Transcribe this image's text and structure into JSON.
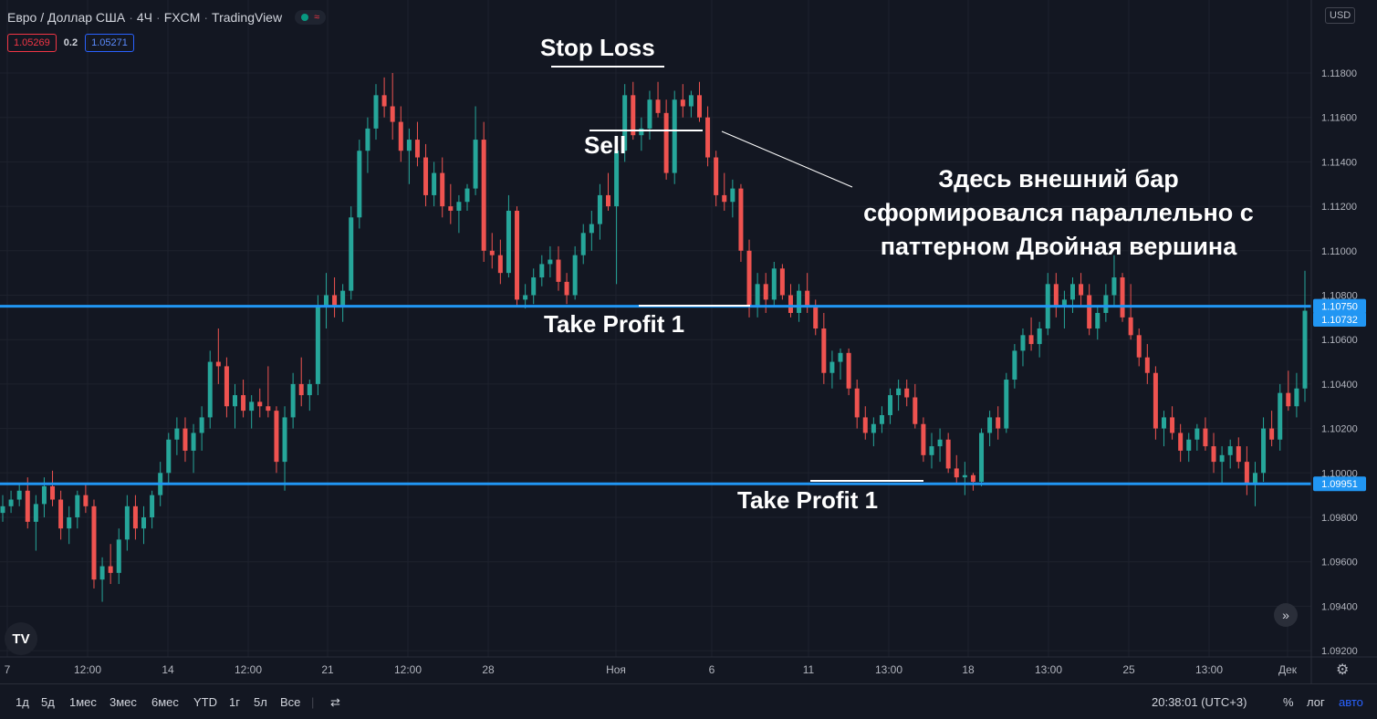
{
  "header": {
    "symbol": "Евро / Доллар США",
    "interval": "4Ч",
    "broker": "FXCM",
    "platform": "TradingView"
  },
  "quotes": {
    "sell": "1.05269",
    "spread": "0.2",
    "buy": "1.05271"
  },
  "currency_button": "USD",
  "colors": {
    "up": "#26a69a",
    "down": "#ef5350",
    "level": "#2196f3",
    "background": "#131722"
  },
  "chart_data": {
    "type": "candlestick",
    "y_ticks": [
      "1.11800",
      "1.11600",
      "1.11400",
      "1.11200",
      "1.11000",
      "1.10800",
      "1.10600",
      "1.10400",
      "1.10200",
      "1.10000",
      "1.09800",
      "1.09600",
      "1.09400",
      "1.09200"
    ],
    "ylim": [
      1.0917,
      1.1209
    ],
    "x_ticks": [
      "7",
      "12:00",
      "14",
      "12:00",
      "21",
      "12:00",
      "28",
      "Ноя",
      "6",
      "11",
      "13:00",
      "18",
      "13:00",
      "25",
      "13:00",
      "Дек"
    ],
    "horizontal_levels": [
      1.1075,
      1.09951
    ],
    "level_labels": [
      "1.10750",
      "1.09951"
    ],
    "last_price_label": "1.10732",
    "candles": [
      [
        1.0982,
        1.099,
        1.0978,
        1.0985
      ],
      [
        1.0985,
        1.0992,
        1.0982,
        1.0988
      ],
      [
        1.0988,
        1.0995,
        1.0985,
        1.0992
      ],
      [
        1.0992,
        1.0998,
        1.0975,
        1.0978
      ],
      [
        1.0978,
        1.099,
        1.0965,
        1.0986
      ],
      [
        1.0986,
        1.0998,
        1.098,
        1.0994
      ],
      [
        1.0994,
        1.1001,
        1.0985,
        1.0988
      ],
      [
        1.0988,
        1.0992,
        1.097,
        1.0975
      ],
      [
        1.0975,
        1.0985,
        1.0968,
        1.098
      ],
      [
        1.098,
        1.0992,
        1.0975,
        1.099
      ],
      [
        1.099,
        1.0995,
        1.0982,
        1.0985
      ],
      [
        1.0985,
        1.0988,
        1.0948,
        1.0952
      ],
      [
        1.0952,
        1.0962,
        1.0942,
        1.0958
      ],
      [
        1.0958,
        1.0968,
        1.095,
        1.0955
      ],
      [
        1.0955,
        1.0975,
        1.095,
        1.097
      ],
      [
        1.097,
        1.099,
        1.0965,
        1.0985
      ],
      [
        1.0985,
        1.099,
        1.097,
        1.0975
      ],
      [
        1.0975,
        1.0985,
        1.0968,
        1.098
      ],
      [
        1.098,
        1.0992,
        1.0975,
        1.099
      ],
      [
        1.099,
        1.1005,
        1.0985,
        1.1
      ],
      [
        1.1,
        1.1018,
        1.0995,
        1.1015
      ],
      [
        1.1015,
        1.1025,
        1.1008,
        1.102
      ],
      [
        1.102,
        1.1025,
        1.1005,
        1.101
      ],
      [
        1.101,
        1.1022,
        1.1,
        1.1018
      ],
      [
        1.1018,
        1.103,
        1.101,
        1.1025
      ],
      [
        1.1025,
        1.1055,
        1.102,
        1.105
      ],
      [
        1.105,
        1.1065,
        1.104,
        1.1048
      ],
      [
        1.1048,
        1.1052,
        1.1025,
        1.103
      ],
      [
        1.103,
        1.104,
        1.102,
        1.1035
      ],
      [
        1.1035,
        1.1042,
        1.1025,
        1.1028
      ],
      [
        1.1028,
        1.1035,
        1.102,
        1.1032
      ],
      [
        1.1032,
        1.1038,
        1.1025,
        1.103
      ],
      [
        1.103,
        1.1048,
        1.1025,
        1.1028
      ],
      [
        1.1028,
        1.103,
        1.1,
        1.1005
      ],
      [
        1.1005,
        1.103,
        1.0992,
        1.1025
      ],
      [
        1.1025,
        1.1045,
        1.102,
        1.104
      ],
      [
        1.104,
        1.1052,
        1.103,
        1.1035
      ],
      [
        1.1035,
        1.1042,
        1.1028,
        1.104
      ],
      [
        1.104,
        1.108,
        1.1035,
        1.1075
      ],
      [
        1.1075,
        1.109,
        1.1065,
        1.108
      ],
      [
        1.108,
        1.1088,
        1.107,
        1.1075
      ],
      [
        1.1075,
        1.1085,
        1.1068,
        1.1082
      ],
      [
        1.1082,
        1.112,
        1.1078,
        1.1115
      ],
      [
        1.1115,
        1.115,
        1.111,
        1.1145
      ],
      [
        1.1145,
        1.116,
        1.1135,
        1.1155
      ],
      [
        1.1155,
        1.1175,
        1.115,
        1.117
      ],
      [
        1.117,
        1.1178,
        1.116,
        1.1165
      ],
      [
        1.1165,
        1.118,
        1.115,
        1.1158
      ],
      [
        1.1158,
        1.1165,
        1.114,
        1.1145
      ],
      [
        1.1145,
        1.1155,
        1.113,
        1.115
      ],
      [
        1.115,
        1.1158,
        1.1138,
        1.1142
      ],
      [
        1.1142,
        1.1148,
        1.112,
        1.1125
      ],
      [
        1.1125,
        1.114,
        1.112,
        1.1135
      ],
      [
        1.1135,
        1.1142,
        1.1115,
        1.112
      ],
      [
        1.112,
        1.113,
        1.1112,
        1.1118
      ],
      [
        1.1118,
        1.1125,
        1.1108,
        1.1122
      ],
      [
        1.1122,
        1.113,
        1.1118,
        1.1128
      ],
      [
        1.1128,
        1.1165,
        1.1125,
        1.115
      ],
      [
        1.115,
        1.1158,
        1.1095,
        1.11
      ],
      [
        1.11,
        1.1108,
        1.1092,
        1.1098
      ],
      [
        1.1098,
        1.1105,
        1.1085,
        1.109
      ],
      [
        1.109,
        1.1125,
        1.1088,
        1.1118
      ],
      [
        1.1118,
        1.112,
        1.1075,
        1.1078
      ],
      [
        1.1078,
        1.1085,
        1.1074,
        1.108
      ],
      [
        1.108,
        1.1092,
        1.1076,
        1.1088
      ],
      [
        1.1088,
        1.1098,
        1.1084,
        1.1094
      ],
      [
        1.1094,
        1.1102,
        1.1088,
        1.1096
      ],
      [
        1.1096,
        1.1102,
        1.1082,
        1.1086
      ],
      [
        1.1086,
        1.109,
        1.1076,
        1.108
      ],
      [
        1.108,
        1.1102,
        1.1078,
        1.1098
      ],
      [
        1.1098,
        1.1112,
        1.1094,
        1.1108
      ],
      [
        1.1108,
        1.1118,
        1.11,
        1.1112
      ],
      [
        1.1112,
        1.113,
        1.1105,
        1.1125
      ],
      [
        1.1125,
        1.1135,
        1.1118,
        1.112
      ],
      [
        1.112,
        1.115,
        1.1085,
        1.1145
      ],
      [
        1.1145,
        1.1175,
        1.114,
        1.117
      ],
      [
        1.117,
        1.1176,
        1.115,
        1.1152
      ],
      [
        1.1152,
        1.116,
        1.1145,
        1.1155
      ],
      [
        1.1155,
        1.1172,
        1.115,
        1.1168
      ],
      [
        1.1168,
        1.1176,
        1.116,
        1.1162
      ],
      [
        1.1162,
        1.1168,
        1.1132,
        1.1135
      ],
      [
        1.1135,
        1.1172,
        1.113,
        1.1168
      ],
      [
        1.1168,
        1.1175,
        1.116,
        1.1165
      ],
      [
        1.1165,
        1.1172,
        1.116,
        1.117
      ],
      [
        1.117,
        1.1176,
        1.1158,
        1.116
      ],
      [
        1.116,
        1.1165,
        1.1138,
        1.1142
      ],
      [
        1.1142,
        1.1145,
        1.112,
        1.1125
      ],
      [
        1.1125,
        1.1135,
        1.1118,
        1.1122
      ],
      [
        1.1122,
        1.1132,
        1.1115,
        1.1128
      ],
      [
        1.1128,
        1.113,
        1.1095,
        1.11
      ],
      [
        1.11,
        1.1105,
        1.107,
        1.1075
      ],
      [
        1.1075,
        1.109,
        1.107,
        1.1085
      ],
      [
        1.1085,
        1.109,
        1.1072,
        1.1078
      ],
      [
        1.1078,
        1.1095,
        1.1075,
        1.1092
      ],
      [
        1.1092,
        1.1094,
        1.1078,
        1.108
      ],
      [
        1.108,
        1.1085,
        1.107,
        1.1072
      ],
      [
        1.1072,
        1.1085,
        1.1068,
        1.1082
      ],
      [
        1.1082,
        1.109,
        1.1072,
        1.1075
      ],
      [
        1.1075,
        1.1078,
        1.1062,
        1.1065
      ],
      [
        1.1065,
        1.1072,
        1.104,
        1.1045
      ],
      [
        1.1045,
        1.1055,
        1.1038,
        1.105
      ],
      [
        1.105,
        1.1056,
        1.1042,
        1.1054
      ],
      [
        1.1054,
        1.1056,
        1.1035,
        1.1038
      ],
      [
        1.1038,
        1.1042,
        1.102,
        1.1025
      ],
      [
        1.1025,
        1.103,
        1.1015,
        1.1018
      ],
      [
        1.1018,
        1.1025,
        1.1012,
        1.1022
      ],
      [
        1.1022,
        1.103,
        1.1018,
        1.1026
      ],
      [
        1.1026,
        1.1038,
        1.1022,
        1.1035
      ],
      [
        1.1035,
        1.1042,
        1.1028,
        1.1038
      ],
      [
        1.1038,
        1.1042,
        1.103,
        1.1034
      ],
      [
        1.1034,
        1.104,
        1.102,
        1.1022
      ],
      [
        1.1022,
        1.1025,
        1.1005,
        1.1008
      ],
      [
        1.1008,
        1.1018,
        1.1002,
        1.1012
      ],
      [
        1.1012,
        1.102,
        1.1005,
        1.1015
      ],
      [
        1.1015,
        1.1018,
        1.1,
        1.1002
      ],
      [
        1.1002,
        1.1008,
        1.0995,
        1.0998
      ],
      [
        1.0998,
        1.1005,
        1.099,
        1.0999
      ],
      [
        1.0999,
        1.1,
        1.0992,
        1.0996
      ],
      [
        1.0996,
        1.102,
        1.0994,
        1.1018
      ],
      [
        1.1018,
        1.1028,
        1.1012,
        1.1025
      ],
      [
        1.1025,
        1.103,
        1.1015,
        1.102
      ],
      [
        1.102,
        1.1045,
        1.1018,
        1.1042
      ],
      [
        1.1042,
        1.1058,
        1.1038,
        1.1055
      ],
      [
        1.1055,
        1.1065,
        1.1048,
        1.1062
      ],
      [
        1.1062,
        1.107,
        1.1055,
        1.1058
      ],
      [
        1.1058,
        1.1068,
        1.1052,
        1.1065
      ],
      [
        1.1065,
        1.109,
        1.1062,
        1.1085
      ],
      [
        1.1085,
        1.109,
        1.107,
        1.1075
      ],
      [
        1.1075,
        1.1082,
        1.1065,
        1.1078
      ],
      [
        1.1078,
        1.1088,
        1.1072,
        1.1085
      ],
      [
        1.1085,
        1.109,
        1.1075,
        1.108
      ],
      [
        1.108,
        1.1085,
        1.1062,
        1.1065
      ],
      [
        1.1065,
        1.1075,
        1.106,
        1.1072
      ],
      [
        1.1072,
        1.1085,
        1.1068,
        1.108
      ],
      [
        1.108,
        1.1098,
        1.1075,
        1.1088
      ],
      [
        1.1088,
        1.109,
        1.1068,
        1.107
      ],
      [
        1.107,
        1.1085,
        1.106,
        1.1062
      ],
      [
        1.1062,
        1.1065,
        1.1048,
        1.1052
      ],
      [
        1.1052,
        1.1058,
        1.104,
        1.1045
      ],
      [
        1.1045,
        1.1048,
        1.1015,
        1.102
      ],
      [
        1.102,
        1.1028,
        1.1012,
        1.1025
      ],
      [
        1.1025,
        1.103,
        1.1015,
        1.1018
      ],
      [
        1.1018,
        1.1022,
        1.1005,
        1.101
      ],
      [
        1.101,
        1.1018,
        1.1005,
        1.1015
      ],
      [
        1.1015,
        1.1022,
        1.101,
        1.102
      ],
      [
        1.102,
        1.1025,
        1.101,
        1.1012
      ],
      [
        1.1012,
        1.1018,
        1.1,
        1.1005
      ],
      [
        1.1005,
        1.1012,
        1.0995,
        1.1008
      ],
      [
        1.1008,
        1.1015,
        1.1002,
        1.1012
      ],
      [
        1.1012,
        1.1016,
        1.1002,
        1.1005
      ],
      [
        1.1005,
        1.1012,
        1.099,
        1.0995
      ],
      [
        1.0995,
        1.1005,
        1.0985,
        1.1
      ],
      [
        1.1,
        1.1025,
        1.0996,
        1.102
      ],
      [
        1.102,
        1.1028,
        1.1012,
        1.1015
      ],
      [
        1.1015,
        1.104,
        1.101,
        1.1036
      ],
      [
        1.1036,
        1.1046,
        1.1028,
        1.103
      ],
      [
        1.103,
        1.1045,
        1.1025,
        1.1038
      ],
      [
        1.1038,
        1.1091,
        1.1032,
        1.1073
      ]
    ]
  },
  "annotations": {
    "stop_loss": "Stop Loss",
    "sell": "Sell",
    "take_profit_upper": "Take Profit 1",
    "take_profit_lower": "Take Profit 1",
    "note_lines": [
      "Здесь внешний бар",
      "сформировался параллельно с",
      "паттерном Двойная вершина"
    ]
  },
  "bottom_bar": {
    "ranges": [
      "1д",
      "5д",
      "1мес",
      "3мес",
      "6мес",
      "YTD",
      "1г",
      "5л",
      "Все"
    ],
    "time": "20:38:01 (UTC+3)",
    "percent": "%",
    "log": "лог",
    "auto": "авто"
  },
  "logo_text": "TV",
  "scroll_icon": "double-chevron-right-icon",
  "settings_icon": "gear-icon"
}
